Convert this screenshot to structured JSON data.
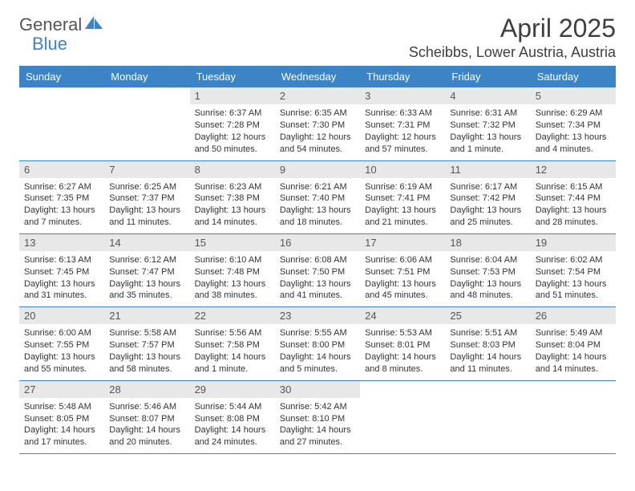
{
  "brand": {
    "word1": "General",
    "word2": "Blue",
    "word1_color": "#555555",
    "word2_color": "#3c84c6",
    "sail_color": "#3c84c6"
  },
  "title": {
    "month_year": "April 2025",
    "location": "Scheibbs, Lower Austria, Austria",
    "title_fontsize": 32,
    "location_fontsize": 18,
    "text_color": "#3f3f3f"
  },
  "calendar": {
    "header_bg": "#3c84c6",
    "header_fg": "#ffffff",
    "daynum_bg": "#e8e8e8",
    "daynum_fg": "#555555",
    "row_border_color": "#3c84c6",
    "body_fontsize": 11,
    "days_of_week": [
      "Sunday",
      "Monday",
      "Tuesday",
      "Wednesday",
      "Thursday",
      "Friday",
      "Saturday"
    ],
    "weeks": [
      [
        null,
        null,
        {
          "n": "1",
          "sr": "Sunrise: 6:37 AM",
          "ss": "Sunset: 7:28 PM",
          "dl": "Daylight: 12 hours and 50 minutes."
        },
        {
          "n": "2",
          "sr": "Sunrise: 6:35 AM",
          "ss": "Sunset: 7:30 PM",
          "dl": "Daylight: 12 hours and 54 minutes."
        },
        {
          "n": "3",
          "sr": "Sunrise: 6:33 AM",
          "ss": "Sunset: 7:31 PM",
          "dl": "Daylight: 12 hours and 57 minutes."
        },
        {
          "n": "4",
          "sr": "Sunrise: 6:31 AM",
          "ss": "Sunset: 7:32 PM",
          "dl": "Daylight: 13 hours and 1 minute."
        },
        {
          "n": "5",
          "sr": "Sunrise: 6:29 AM",
          "ss": "Sunset: 7:34 PM",
          "dl": "Daylight: 13 hours and 4 minutes."
        }
      ],
      [
        {
          "n": "6",
          "sr": "Sunrise: 6:27 AM",
          "ss": "Sunset: 7:35 PM",
          "dl": "Daylight: 13 hours and 7 minutes."
        },
        {
          "n": "7",
          "sr": "Sunrise: 6:25 AM",
          "ss": "Sunset: 7:37 PM",
          "dl": "Daylight: 13 hours and 11 minutes."
        },
        {
          "n": "8",
          "sr": "Sunrise: 6:23 AM",
          "ss": "Sunset: 7:38 PM",
          "dl": "Daylight: 13 hours and 14 minutes."
        },
        {
          "n": "9",
          "sr": "Sunrise: 6:21 AM",
          "ss": "Sunset: 7:40 PM",
          "dl": "Daylight: 13 hours and 18 minutes."
        },
        {
          "n": "10",
          "sr": "Sunrise: 6:19 AM",
          "ss": "Sunset: 7:41 PM",
          "dl": "Daylight: 13 hours and 21 minutes."
        },
        {
          "n": "11",
          "sr": "Sunrise: 6:17 AM",
          "ss": "Sunset: 7:42 PM",
          "dl": "Daylight: 13 hours and 25 minutes."
        },
        {
          "n": "12",
          "sr": "Sunrise: 6:15 AM",
          "ss": "Sunset: 7:44 PM",
          "dl": "Daylight: 13 hours and 28 minutes."
        }
      ],
      [
        {
          "n": "13",
          "sr": "Sunrise: 6:13 AM",
          "ss": "Sunset: 7:45 PM",
          "dl": "Daylight: 13 hours and 31 minutes."
        },
        {
          "n": "14",
          "sr": "Sunrise: 6:12 AM",
          "ss": "Sunset: 7:47 PM",
          "dl": "Daylight: 13 hours and 35 minutes."
        },
        {
          "n": "15",
          "sr": "Sunrise: 6:10 AM",
          "ss": "Sunset: 7:48 PM",
          "dl": "Daylight: 13 hours and 38 minutes."
        },
        {
          "n": "16",
          "sr": "Sunrise: 6:08 AM",
          "ss": "Sunset: 7:50 PM",
          "dl": "Daylight: 13 hours and 41 minutes."
        },
        {
          "n": "17",
          "sr": "Sunrise: 6:06 AM",
          "ss": "Sunset: 7:51 PM",
          "dl": "Daylight: 13 hours and 45 minutes."
        },
        {
          "n": "18",
          "sr": "Sunrise: 6:04 AM",
          "ss": "Sunset: 7:53 PM",
          "dl": "Daylight: 13 hours and 48 minutes."
        },
        {
          "n": "19",
          "sr": "Sunrise: 6:02 AM",
          "ss": "Sunset: 7:54 PM",
          "dl": "Daylight: 13 hours and 51 minutes."
        }
      ],
      [
        {
          "n": "20",
          "sr": "Sunrise: 6:00 AM",
          "ss": "Sunset: 7:55 PM",
          "dl": "Daylight: 13 hours and 55 minutes."
        },
        {
          "n": "21",
          "sr": "Sunrise: 5:58 AM",
          "ss": "Sunset: 7:57 PM",
          "dl": "Daylight: 13 hours and 58 minutes."
        },
        {
          "n": "22",
          "sr": "Sunrise: 5:56 AM",
          "ss": "Sunset: 7:58 PM",
          "dl": "Daylight: 14 hours and 1 minute."
        },
        {
          "n": "23",
          "sr": "Sunrise: 5:55 AM",
          "ss": "Sunset: 8:00 PM",
          "dl": "Daylight: 14 hours and 5 minutes."
        },
        {
          "n": "24",
          "sr": "Sunrise: 5:53 AM",
          "ss": "Sunset: 8:01 PM",
          "dl": "Daylight: 14 hours and 8 minutes."
        },
        {
          "n": "25",
          "sr": "Sunrise: 5:51 AM",
          "ss": "Sunset: 8:03 PM",
          "dl": "Daylight: 14 hours and 11 minutes."
        },
        {
          "n": "26",
          "sr": "Sunrise: 5:49 AM",
          "ss": "Sunset: 8:04 PM",
          "dl": "Daylight: 14 hours and 14 minutes."
        }
      ],
      [
        {
          "n": "27",
          "sr": "Sunrise: 5:48 AM",
          "ss": "Sunset: 8:05 PM",
          "dl": "Daylight: 14 hours and 17 minutes."
        },
        {
          "n": "28",
          "sr": "Sunrise: 5:46 AM",
          "ss": "Sunset: 8:07 PM",
          "dl": "Daylight: 14 hours and 20 minutes."
        },
        {
          "n": "29",
          "sr": "Sunrise: 5:44 AM",
          "ss": "Sunset: 8:08 PM",
          "dl": "Daylight: 14 hours and 24 minutes."
        },
        {
          "n": "30",
          "sr": "Sunrise: 5:42 AM",
          "ss": "Sunset: 8:10 PM",
          "dl": "Daylight: 14 hours and 27 minutes."
        },
        null,
        null,
        null
      ]
    ]
  }
}
